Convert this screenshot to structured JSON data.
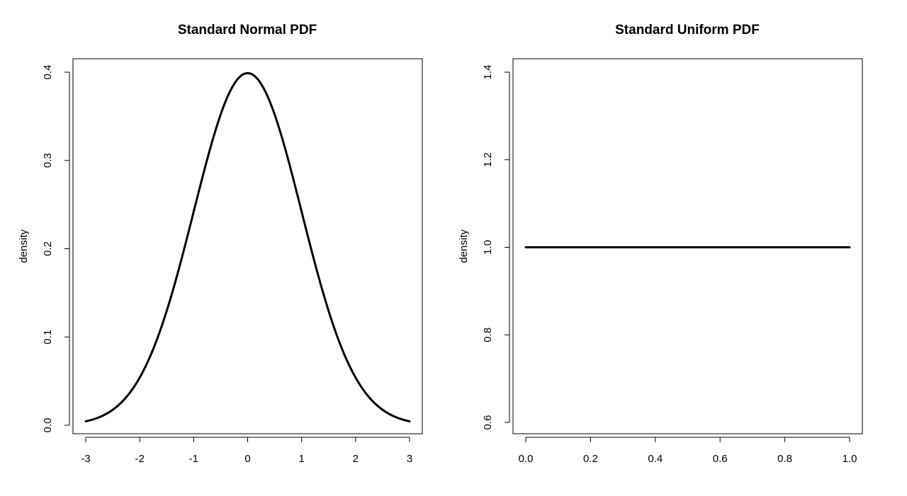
{
  "chart_data": [
    {
      "type": "line",
      "title": "Standard Normal PDF",
      "xlabel": "",
      "ylabel": "density",
      "xlim": [
        -3,
        3
      ],
      "ylim": [
        0,
        0.4
      ],
      "xticks": [
        -3,
        -2,
        -1,
        0,
        1,
        2,
        3
      ],
      "xtick_labels": [
        "-3",
        "-2",
        "-1",
        "0",
        "1",
        "2",
        "3"
      ],
      "yticks": [
        0.0,
        0.1,
        0.2,
        0.3,
        0.4
      ],
      "ytick_labels": [
        "0.0",
        "0.1",
        "0.2",
        "0.3",
        "0.4"
      ],
      "grid": false,
      "line_color": "#000000",
      "series": [
        {
          "x": [
            -3.0,
            -2.75,
            -2.5,
            -2.25,
            -2.0,
            -1.75,
            -1.5,
            -1.25,
            -1.0,
            -0.75,
            -0.5,
            -0.25,
            0.0,
            0.25,
            0.5,
            0.75,
            1.0,
            1.25,
            1.5,
            1.75,
            2.0,
            2.25,
            2.5,
            2.75,
            3.0
          ],
          "y": [
            0.0044,
            0.0091,
            0.0175,
            0.0317,
            0.054,
            0.0863,
            0.1295,
            0.1826,
            0.242,
            0.3011,
            0.3521,
            0.3867,
            0.3989,
            0.3867,
            0.3521,
            0.3011,
            0.242,
            0.1826,
            0.1295,
            0.0863,
            0.054,
            0.0317,
            0.0175,
            0.0091,
            0.0044
          ]
        }
      ]
    },
    {
      "type": "line",
      "title": "Standard Uniform PDF",
      "xlabel": "",
      "ylabel": "density",
      "xlim": [
        0,
        1
      ],
      "ylim": [
        0.6,
        1.4
      ],
      "xticks": [
        0.0,
        0.2,
        0.4,
        0.6,
        0.8,
        1.0
      ],
      "xtick_labels": [
        "0.0",
        "0.2",
        "0.4",
        "0.6",
        "0.8",
        "1.0"
      ],
      "yticks": [
        0.6,
        0.8,
        1.0,
        1.2,
        1.4
      ],
      "ytick_labels": [
        "0.6",
        "0.8",
        "1.0",
        "1.2",
        "1.4"
      ],
      "grid": false,
      "line_color": "#000000",
      "series": [
        {
          "x": [
            0.0,
            1.0
          ],
          "y": [
            1.0,
            1.0
          ]
        }
      ]
    }
  ]
}
